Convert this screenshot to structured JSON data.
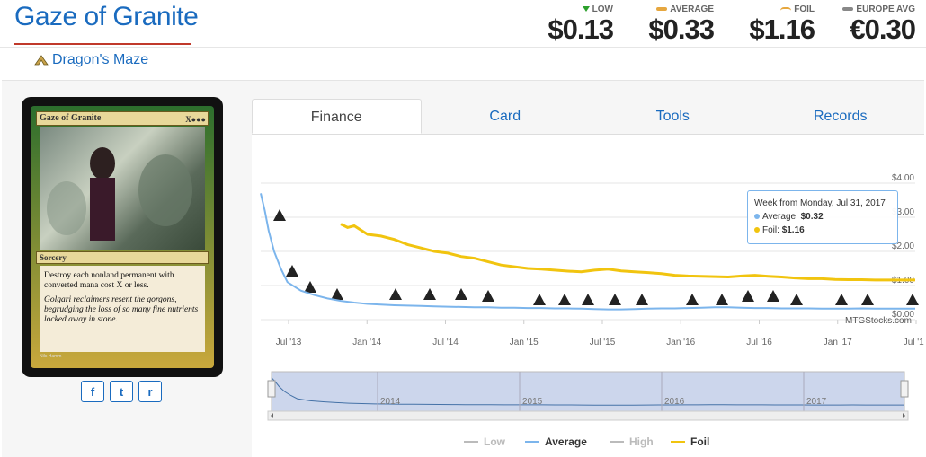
{
  "card": {
    "title": "Gaze of Granite",
    "set_name": "Dragon's Maze",
    "name_on_card": "Gaze of Granite",
    "mana_cost": "X●●●",
    "type_line": "Sorcery",
    "rules_text": "Destroy each nonland permanent with converted mana cost X or less.",
    "flavor_text": "Golgari reclaimers resent the gorgons, begrudging the loss of so many fine nutrients locked away in stone.",
    "artist": "Nils Hamm"
  },
  "prices": [
    {
      "label": "LOW",
      "value": "$0.13",
      "icon": "arrow-down-icon"
    },
    {
      "label": "AVERAGE",
      "value": "$0.33",
      "icon": "average-bar-icon"
    },
    {
      "label": "FOIL",
      "value": "$1.16",
      "icon": "foil-arc-icon"
    },
    {
      "label": "EUROPE AVG",
      "value": "€0.30",
      "icon": "europe-bar-icon"
    }
  ],
  "tabs": [
    "Finance",
    "Card",
    "Tools",
    "Records"
  ],
  "social": [
    "f",
    "t",
    "r"
  ],
  "tooltip": {
    "header": "Week from Monday, Jul 31, 2017",
    "average_label": "Average:",
    "average_value": "$0.32",
    "foil_label": "Foil:",
    "foil_value": "$1.16"
  },
  "watermark": "MTGStocks.com",
  "colors": {
    "accent": "#1a6bbf",
    "average": "#7cb5ec",
    "foil": "#f1c40f",
    "low": "#bbbbbb",
    "high": "#bbbbbb"
  },
  "chart_data": {
    "type": "line",
    "x_ticks": [
      "Jul '13",
      "Jan '14",
      "Jul '14",
      "Jan '15",
      "Jul '15",
      "Jan '16",
      "Jul '16",
      "Jan '17",
      "Jul '17"
    ],
    "y_ticks": [
      "$4.00",
      "$3.00",
      "$2.00",
      "$1.00",
      "$0.00"
    ],
    "ylim": [
      0,
      4
    ],
    "navigator_years": [
      "2014",
      "2015",
      "2016",
      "2017"
    ],
    "legend": [
      "Low",
      "Average",
      "High",
      "Foil"
    ],
    "series": [
      {
        "name": "Average",
        "x": [
          0,
          0.3,
          0.6,
          1,
          1.5,
          2,
          3,
          4,
          5,
          6,
          7,
          8,
          9,
          10,
          11,
          12,
          13,
          14,
          15,
          16,
          17,
          18,
          19,
          20,
          21,
          22,
          23,
          24,
          25,
          26,
          27,
          28,
          29,
          30,
          31,
          32,
          33,
          34,
          35,
          36,
          37,
          38,
          39,
          40,
          41,
          42,
          43,
          44,
          45,
          46,
          47,
          48,
          49
        ],
        "y": [
          3.7,
          3.2,
          2.6,
          2.0,
          1.5,
          1.1,
          0.85,
          0.72,
          0.62,
          0.55,
          0.5,
          0.46,
          0.44,
          0.42,
          0.41,
          0.4,
          0.39,
          0.38,
          0.37,
          0.36,
          0.36,
          0.35,
          0.35,
          0.34,
          0.34,
          0.33,
          0.33,
          0.32,
          0.31,
          0.3,
          0.3,
          0.31,
          0.32,
          0.33,
          0.33,
          0.34,
          0.35,
          0.36,
          0.36,
          0.35,
          0.34,
          0.34,
          0.33,
          0.33,
          0.33,
          0.32,
          0.32,
          0.32,
          0.33,
          0.32,
          0.32,
          0.32,
          0.32
        ]
      },
      {
        "name": "Foil",
        "x": [
          6,
          6.5,
          7,
          8,
          9,
          10,
          11,
          12,
          13,
          14,
          15,
          16,
          17,
          18,
          19,
          20,
          21,
          22,
          23,
          24,
          25,
          26,
          27,
          28,
          29,
          30,
          31,
          32,
          33,
          34,
          35,
          36,
          37,
          38,
          39,
          40,
          41,
          42,
          43,
          44,
          45,
          46,
          47,
          48,
          49
        ],
        "y": [
          2.8,
          2.7,
          2.75,
          2.5,
          2.45,
          2.35,
          2.2,
          2.1,
          2.0,
          1.95,
          1.85,
          1.8,
          1.7,
          1.6,
          1.55,
          1.5,
          1.48,
          1.45,
          1.42,
          1.4,
          1.45,
          1.48,
          1.43,
          1.4,
          1.38,
          1.35,
          1.3,
          1.28,
          1.27,
          1.26,
          1.25,
          1.28,
          1.3,
          1.27,
          1.25,
          1.22,
          1.2,
          1.2,
          1.18,
          1.17,
          1.17,
          1.16,
          1.16,
          1.16,
          1.16
        ]
      }
    ],
    "set_marker_icons": [
      "dgm-set-icon",
      "set-icon",
      "m14-set-icon",
      "ths-set-icon",
      "bng-set-icon",
      "jou-set-icon",
      "m15-set-icon",
      "ktk-set-icon",
      "frf-set-icon",
      "dtk-set-icon",
      "ori-set-icon",
      "bfz-set-icon",
      "ogw-set-icon",
      "soi-set-icon",
      "emn-set-icon",
      "kld-set-icon",
      "aer-set-icon",
      "akh-set-icon",
      "hou-set-icon",
      "c17-set-icon",
      "xln-set-icon"
    ]
  }
}
